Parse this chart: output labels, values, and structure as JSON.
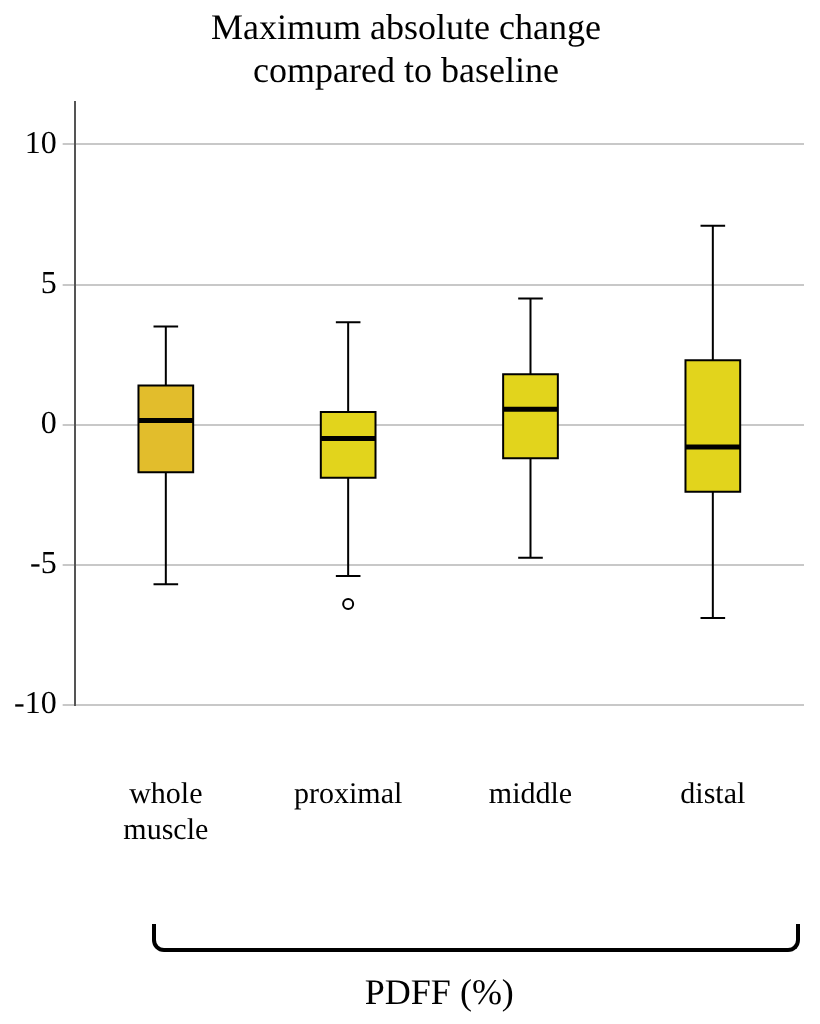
{
  "chart_data": {
    "type": "box",
    "title": "Maximum absolute change compared to baseline",
    "xlabel": "PDFF (%)",
    "categories": [
      "whole muscle",
      "proximal",
      "middle",
      "distal"
    ],
    "colors": [
      "#e2bd2c",
      "#e2d41c",
      "#e2d41c",
      "#e2d41c"
    ],
    "boxes": [
      {
        "low": -5.7,
        "q1": -1.7,
        "median": 0.15,
        "q3": 1.4,
        "high": 3.5
      },
      {
        "low": -5.4,
        "q1": -1.9,
        "median": -0.5,
        "q3": 0.45,
        "high": 3.65,
        "outliers": [
          -6.4
        ]
      },
      {
        "low": -4.75,
        "q1": -1.2,
        "median": 0.55,
        "q3": 1.8,
        "high": 4.5
      },
      {
        "low": -6.9,
        "q1": -2.4,
        "median": -0.8,
        "q3": 2.3,
        "high": 7.1
      }
    ],
    "ylim": [
      -10,
      11.5
    ],
    "yticks": [
      -10,
      -5,
      0,
      5,
      10
    ],
    "grid": "y",
    "legend": false
  }
}
